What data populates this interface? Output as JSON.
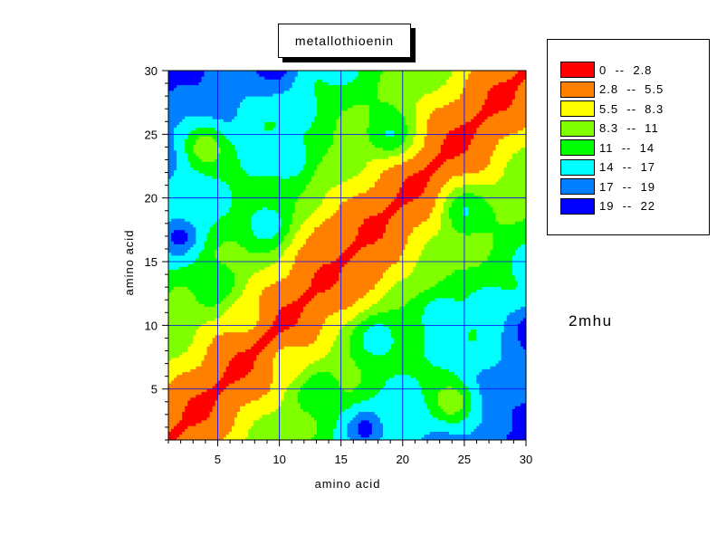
{
  "chart_data": {
    "type": "heatmap",
    "title": "metallothioenin",
    "xlabel": "amino acid",
    "ylabel": "amino acid",
    "xlim": [
      1,
      30
    ],
    "ylim": [
      1,
      30
    ],
    "xticks": [
      5,
      10,
      15,
      20,
      25,
      30
    ],
    "yticks": [
      5,
      10,
      15,
      20,
      25,
      30
    ],
    "grid": true,
    "legend_position": "right",
    "annotation": "2mhu",
    "levels": [
      {
        "label": "0  --  2.8",
        "min": 0,
        "max": 2.8,
        "color": "#ff0000"
      },
      {
        "label": "2.8  --  5.5",
        "min": 2.8,
        "max": 5.5,
        "color": "#ff8000"
      },
      {
        "label": "5.5  --  8.3",
        "min": 5.5,
        "max": 8.3,
        "color": "#ffff00"
      },
      {
        "label": "8.3  --  11",
        "min": 8.3,
        "max": 11,
        "color": "#80ff00"
      },
      {
        "label": "11  --  14",
        "min": 11,
        "max": 14,
        "color": "#00ff00"
      },
      {
        "label": "14  --  17",
        "min": 14,
        "max": 17,
        "color": "#00ffff"
      },
      {
        "label": "17  --  19",
        "min": 17,
        "max": 19,
        "color": "#0080ff"
      },
      {
        "label": "19  --  22",
        "min": 19,
        "max": 22,
        "color": "#0000ff"
      }
    ],
    "description": "Symmetric distance map between amino acid residues; values near 0 along the diagonal, increasing with residue separation.",
    "hotspots": [
      {
        "x": 2,
        "y": 17,
        "value": 21
      },
      {
        "x": 17,
        "y": 2,
        "value": 21
      },
      {
        "x": 10,
        "y": 30,
        "value": 20
      },
      {
        "x": 30,
        "y": 10,
        "value": 20
      },
      {
        "x": 9,
        "y": 18,
        "value": 18
      },
      {
        "x": 18,
        "y": 9,
        "value": 18
      },
      {
        "x": 2,
        "y": 28,
        "value": 18
      },
      {
        "x": 28,
        "y": 2,
        "value": 18
      },
      {
        "x": 11,
        "y": 23,
        "value": 17.5
      },
      {
        "x": 23,
        "y": 11,
        "value": 17.5
      },
      {
        "x": 21,
        "y": 3,
        "value": 16
      },
      {
        "x": 3,
        "y": 21,
        "value": 16
      },
      {
        "x": 5,
        "y": 13,
        "value": 15
      },
      {
        "x": 13,
        "y": 5,
        "value": 15
      },
      {
        "x": 19,
        "y": 25,
        "value": 15.5
      },
      {
        "x": 25,
        "y": 19,
        "value": 15.5
      },
      {
        "x": 7,
        "y": 11,
        "value": 7
      },
      {
        "x": 11,
        "y": 7,
        "value": 7
      },
      {
        "x": 4,
        "y": 24,
        "value": 7
      },
      {
        "x": 24,
        "y": 4,
        "value": 7
      },
      {
        "x": 17,
        "y": 14,
        "value": 4
      },
      {
        "x": 14,
        "y": 17,
        "value": 4
      }
    ]
  }
}
